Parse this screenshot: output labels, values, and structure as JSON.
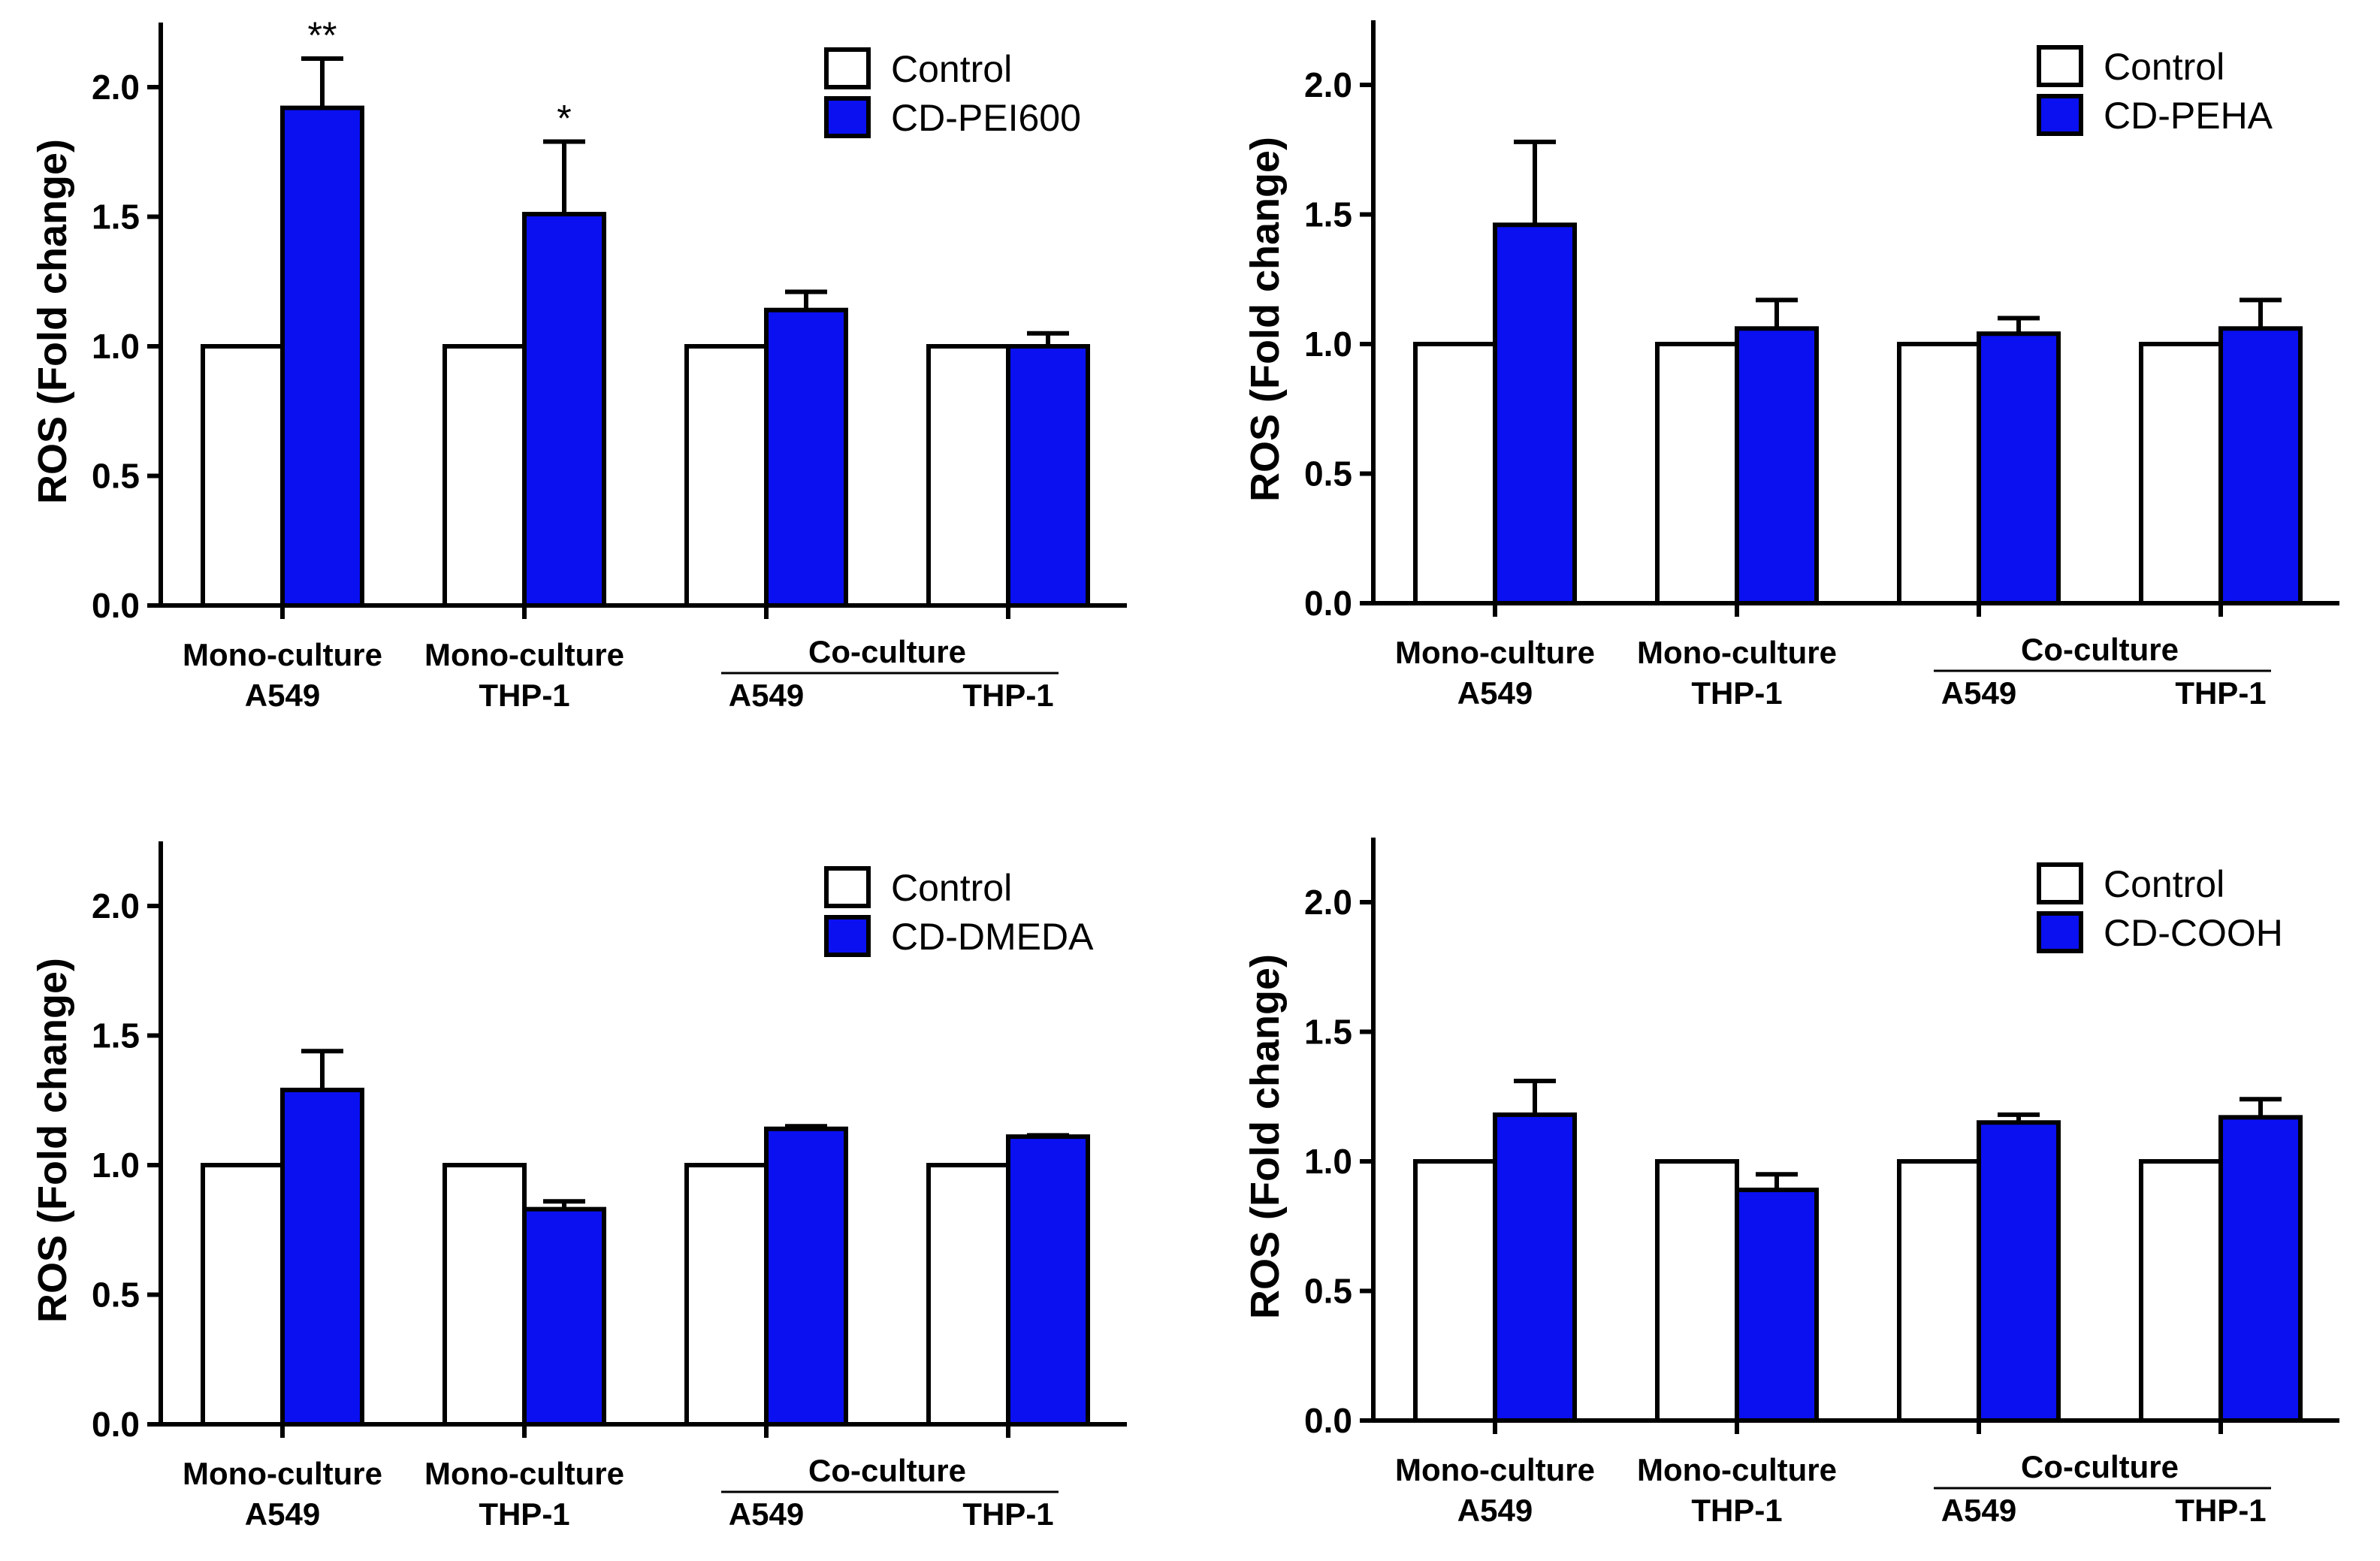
{
  "chart_data": [
    {
      "type": "bar",
      "ylabel": "ROS (Fold change)",
      "ylim": [
        0,
        2.25
      ],
      "yticks": [
        "0.0",
        "0.5",
        "1.0",
        "1.5",
        "2.0"
      ],
      "yticks_values": [
        0,
        0.5,
        1.0,
        1.5,
        2.0
      ],
      "groups": [
        {
          "line1": "Mono-culture",
          "line2": "A549"
        },
        {
          "line1": "Mono-culture",
          "line2": "THP-1"
        },
        {
          "line1": "",
          "line2": "A549"
        },
        {
          "line1": "",
          "line2": "THP-1"
        }
      ],
      "cluster_label": "Co-culture",
      "legend_position": "top-right",
      "series": [
        {
          "name": "Control",
          "color": "#ffffff",
          "values": [
            1.0,
            1.0,
            1.0,
            1.0
          ],
          "errors": [
            0,
            0,
            0,
            0
          ]
        },
        {
          "name": "CD-PEI600",
          "color": "#0a10f0",
          "values": [
            1.92,
            1.51,
            1.14,
            1.0
          ],
          "errors": [
            0.19,
            0.28,
            0.07,
            0.05
          ]
        }
      ],
      "significance": [
        "**",
        "*",
        "",
        ""
      ]
    },
    {
      "type": "bar",
      "ylabel": "ROS (Fold change)",
      "ylim": [
        0,
        2.25
      ],
      "yticks": [
        "0.0",
        "0.5",
        "1.0",
        "1.5",
        "2.0"
      ],
      "yticks_values": [
        0,
        0.5,
        1.0,
        1.5,
        2.0
      ],
      "groups": [
        {
          "line1": "Mono-culture",
          "line2": "A549"
        },
        {
          "line1": "Mono-culture",
          "line2": "THP-1"
        },
        {
          "line1": "",
          "line2": "A549"
        },
        {
          "line1": "",
          "line2": "THP-1"
        }
      ],
      "cluster_label": "Co-culture",
      "legend_position": "top-right",
      "series": [
        {
          "name": "Control",
          "color": "#ffffff",
          "values": [
            1.0,
            1.0,
            1.0,
            1.0
          ],
          "errors": [
            0,
            0,
            0,
            0
          ]
        },
        {
          "name": "CD-PEHA",
          "color": "#0a10f0",
          "values": [
            1.46,
            1.06,
            1.04,
            1.06
          ],
          "errors": [
            0.32,
            0.11,
            0.06,
            0.11
          ]
        }
      ],
      "significance": [
        "",
        "",
        "",
        ""
      ]
    },
    {
      "type": "bar",
      "ylabel": "ROS (Fold change)",
      "ylim": [
        0,
        2.25
      ],
      "yticks": [
        "0.0",
        "0.5",
        "1.0",
        "1.5",
        "2.0"
      ],
      "yticks_values": [
        0,
        0.5,
        1.0,
        1.5,
        2.0
      ],
      "groups": [
        {
          "line1": "Mono-culture",
          "line2": "A549"
        },
        {
          "line1": "Mono-culture",
          "line2": "THP-1"
        },
        {
          "line1": "",
          "line2": "A549"
        },
        {
          "line1": "",
          "line2": "THP-1"
        }
      ],
      "cluster_label": "Co-culture",
      "legend_position": "top-right",
      "series": [
        {
          "name": "Control",
          "color": "#ffffff",
          "values": [
            1.0,
            1.0,
            1.0,
            1.0
          ],
          "errors": [
            0,
            0,
            0,
            0
          ]
        },
        {
          "name": "CD-DMEDA",
          "color": "#0a10f0",
          "values": [
            1.29,
            0.83,
            1.14,
            1.11
          ],
          "errors": [
            0.15,
            0.03,
            0.01,
            0.005
          ]
        }
      ],
      "significance": [
        "",
        "",
        "",
        ""
      ]
    },
    {
      "type": "bar",
      "ylabel": "ROS (Fold change)",
      "ylim": [
        0,
        2.25
      ],
      "yticks": [
        "0.0",
        "0.5",
        "1.0",
        "1.5",
        "2.0"
      ],
      "yticks_values": [
        0,
        0.5,
        1.0,
        1.5,
        2.0
      ],
      "groups": [
        {
          "line1": "Mono-culture",
          "line2": "A549"
        },
        {
          "line1": "Mono-culture",
          "line2": "THP-1"
        },
        {
          "line1": "",
          "line2": "A549"
        },
        {
          "line1": "",
          "line2": "THP-1"
        }
      ],
      "cluster_label": "Co-culture",
      "legend_position": "top-right",
      "series": [
        {
          "name": "Control",
          "color": "#ffffff",
          "values": [
            1.0,
            1.0,
            1.0,
            1.0
          ],
          "errors": [
            0,
            0,
            0,
            0
          ]
        },
        {
          "name": "CD-COOH",
          "color": "#0a10f0",
          "values": [
            1.18,
            0.89,
            1.15,
            1.17
          ],
          "errors": [
            0.13,
            0.06,
            0.03,
            0.07
          ]
        }
      ],
      "significance": [
        "",
        "",
        "",
        ""
      ]
    }
  ]
}
